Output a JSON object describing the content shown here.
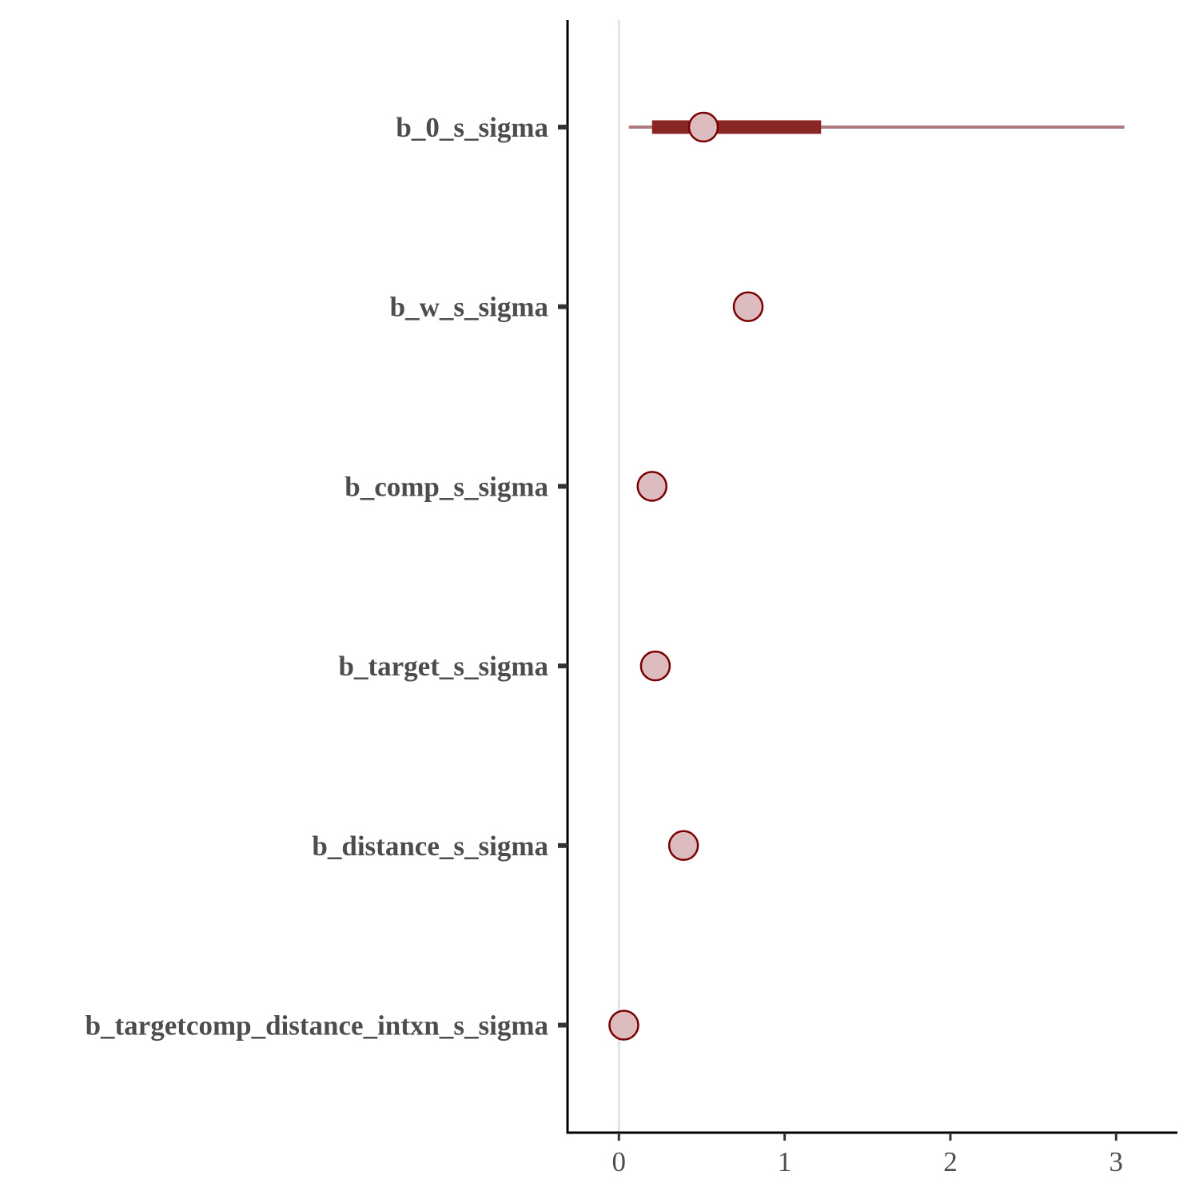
{
  "chart_data": {
    "type": "interval",
    "title": "",
    "xlabel": "",
    "ylabel": "",
    "xlim": [
      -0.31,
      3.37
    ],
    "x_ticks": [
      0,
      1,
      2,
      3
    ],
    "x_tick_labels": [
      "0",
      "1",
      "2",
      "3"
    ],
    "reference_line_x": 0,
    "grid": false,
    "legend": "none",
    "parameters": [
      {
        "label": "b_0_s_sigma",
        "median": 0.51,
        "inner": [
          0.2,
          1.22
        ],
        "outer": [
          0.06,
          3.05
        ]
      },
      {
        "label": "b_w_s_sigma",
        "median": 0.78,
        "inner": null,
        "outer": null
      },
      {
        "label": "b_comp_s_sigma",
        "median": 0.2,
        "inner": null,
        "outer": null
      },
      {
        "label": "b_target_s_sigma",
        "median": 0.22,
        "inner": null,
        "outer": null
      },
      {
        "label": "b_distance_s_sigma",
        "median": 0.39,
        "inner": null,
        "outer": null
      },
      {
        "label": "b_targetcomp_distance_intxn_s_sigma",
        "median": 0.03,
        "inner": null,
        "outer": null
      }
    ],
    "colors": {
      "inner_interval": "#8b2626",
      "outer_interval": "#b07b7d",
      "point_fill": "#dcbcbe",
      "point_stroke": "#7a0000",
      "reference_line": "#e3e3e3",
      "axis": "#000000",
      "text": "#4d4d4d"
    }
  }
}
